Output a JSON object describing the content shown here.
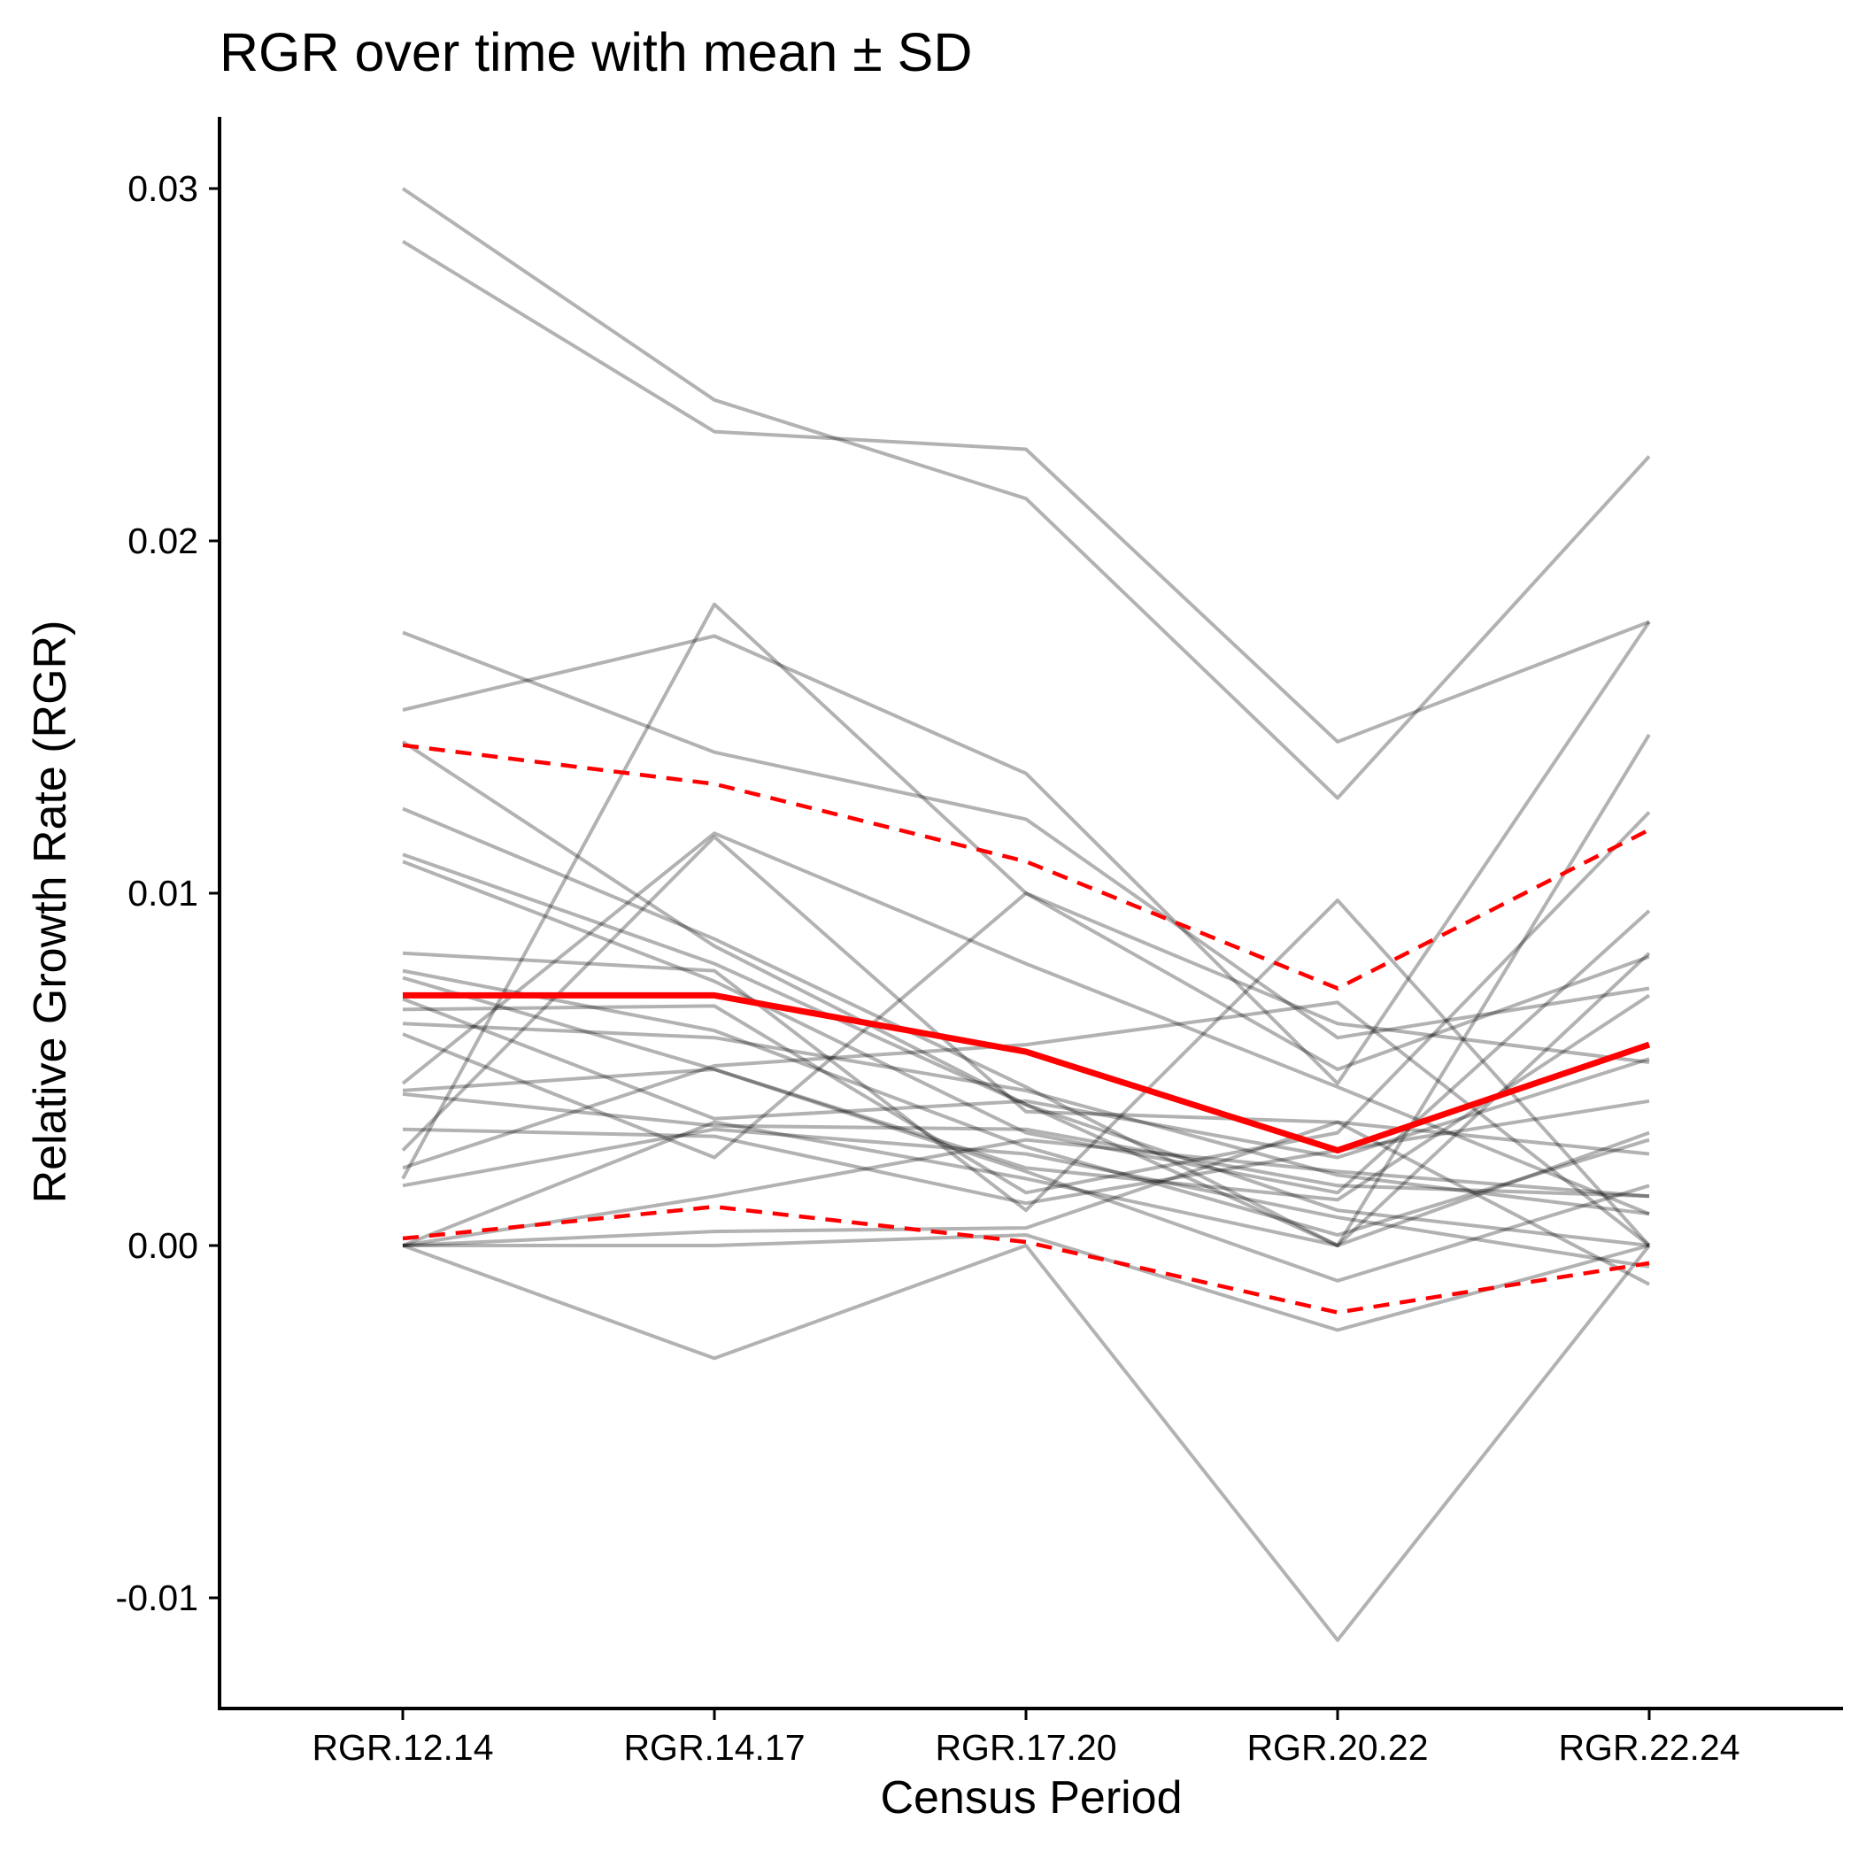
{
  "chart_data": {
    "type": "line",
    "title": "RGR over time with mean ± SD",
    "xlabel": "Census Period",
    "ylabel": "Relative Growth Rate (RGR)",
    "categories": [
      "RGR.12.14",
      "RGR.14.17",
      "RGR.17.20",
      "RGR.20.22",
      "RGR.22.24"
    ],
    "ylim": [
      -0.0132,
      0.032
    ],
    "yticks": [
      -0.01,
      0.0,
      0.01,
      0.02,
      0.03
    ],
    "ytick_labels": [
      "-0.01",
      "0.00",
      "0.01",
      "0.02",
      "0.03"
    ],
    "grid": false,
    "legend": "none",
    "colors": {
      "individual": "#808080",
      "mean": "#ff0000",
      "sd": "#ff0000",
      "axis": "#000000"
    },
    "series": [
      {
        "values": [
          0.03,
          0.024,
          0.0212,
          0.0127,
          0.0224
        ]
      },
      {
        "values": [
          0.0285,
          0.0231,
          0.0226,
          0.0143,
          0.0177
        ]
      },
      {
        "values": [
          0.0174,
          0.014,
          0.0121,
          0.0059,
          0.0073
        ]
      },
      {
        "values": [
          0.0152,
          0.0173,
          0.0134,
          0.0046,
          0.0177
        ]
      },
      {
        "values": [
          0.0143,
          0.0085,
          0.004,
          0.0,
          0.0083
        ]
      },
      {
        "values": [
          0.0019,
          0.0182,
          0.01,
          0.005,
          0.0082
        ]
      },
      {
        "values": [
          0.0124,
          0.0087,
          0.0045,
          0.0,
          0.0145
        ]
      },
      {
        "values": [
          0.0111,
          0.008,
          0.004,
          0.001,
          0.0
        ]
      },
      {
        "values": [
          0.0109,
          0.0075,
          0.0032,
          0.0015,
          0.0095
        ]
      },
      {
        "values": [
          0.0083,
          0.0078,
          0.001,
          0.0098,
          0.0
        ]
      },
      {
        "values": [
          0.0078,
          0.0061,
          0.0028,
          0.0003,
          0.003
        ]
      },
      {
        "values": [
          0.0076,
          0.005,
          0.0021,
          -0.001,
          0.0017
        ]
      },
      {
        "values": [
          0.007,
          0.0036,
          0.0041,
          0.0025,
          0.0053
        ]
      },
      {
        "values": [
          0.0067,
          0.0068,
          0.0015,
          0.0032,
          0.0123
        ]
      },
      {
        "values": [
          0.0063,
          0.0059,
          0.0044,
          0.002,
          0.0009
        ]
      },
      {
        "values": [
          0.006,
          0.0025,
          0.01,
          0.0063,
          0.0052
        ]
      },
      {
        "values": [
          0.0044,
          0.005,
          0.0022,
          0.0013,
          0.0071
        ]
      },
      {
        "values": [
          0.0043,
          0.0034,
          0.0033,
          0.0017,
          0.0014
        ]
      },
      {
        "values": [
          0.0046,
          0.0117,
          0.008,
          0.0045,
          0.0009
        ]
      },
      {
        "values": [
          0.0033,
          0.0031,
          0.0012,
          0.0027,
          0.0041
        ]
      },
      {
        "values": [
          0.0027,
          0.0116,
          0.0038,
          0.0035,
          0.0026
        ]
      },
      {
        "values": [
          0.0022,
          0.0051,
          0.0057,
          0.0069,
          0.0
        ]
      },
      {
        "values": [
          0.0017,
          0.0033,
          0.0026,
          0.0008,
          -0.0006
        ]
      },
      {
        "values": [
          0.0,
          0.0035,
          0.0019,
          0.0,
          0.0032
        ]
      },
      {
        "values": [
          0.0,
          0.0014,
          0.003,
          0.0021,
          0.0014
        ]
      },
      {
        "values": [
          0.0,
          0.0004,
          0.0005,
          0.0035,
          -0.0011
        ]
      },
      {
        "values": [
          0.0,
          0.0,
          0.0003,
          -0.0024,
          0.0
        ]
      },
      {
        "values": [
          0.0,
          -0.0032,
          0.0,
          -0.0112,
          0.0
        ]
      }
    ],
    "mean": {
      "values": [
        0.0071,
        0.0071,
        0.0055,
        0.0027,
        0.0057
      ]
    },
    "sd_upper": {
      "values": [
        0.0142,
        0.0131,
        0.0109,
        0.0073,
        0.0118
      ]
    },
    "sd_lower": {
      "values": [
        0.0002,
        0.0011,
        0.0001,
        -0.0019,
        -0.0005
      ]
    }
  }
}
